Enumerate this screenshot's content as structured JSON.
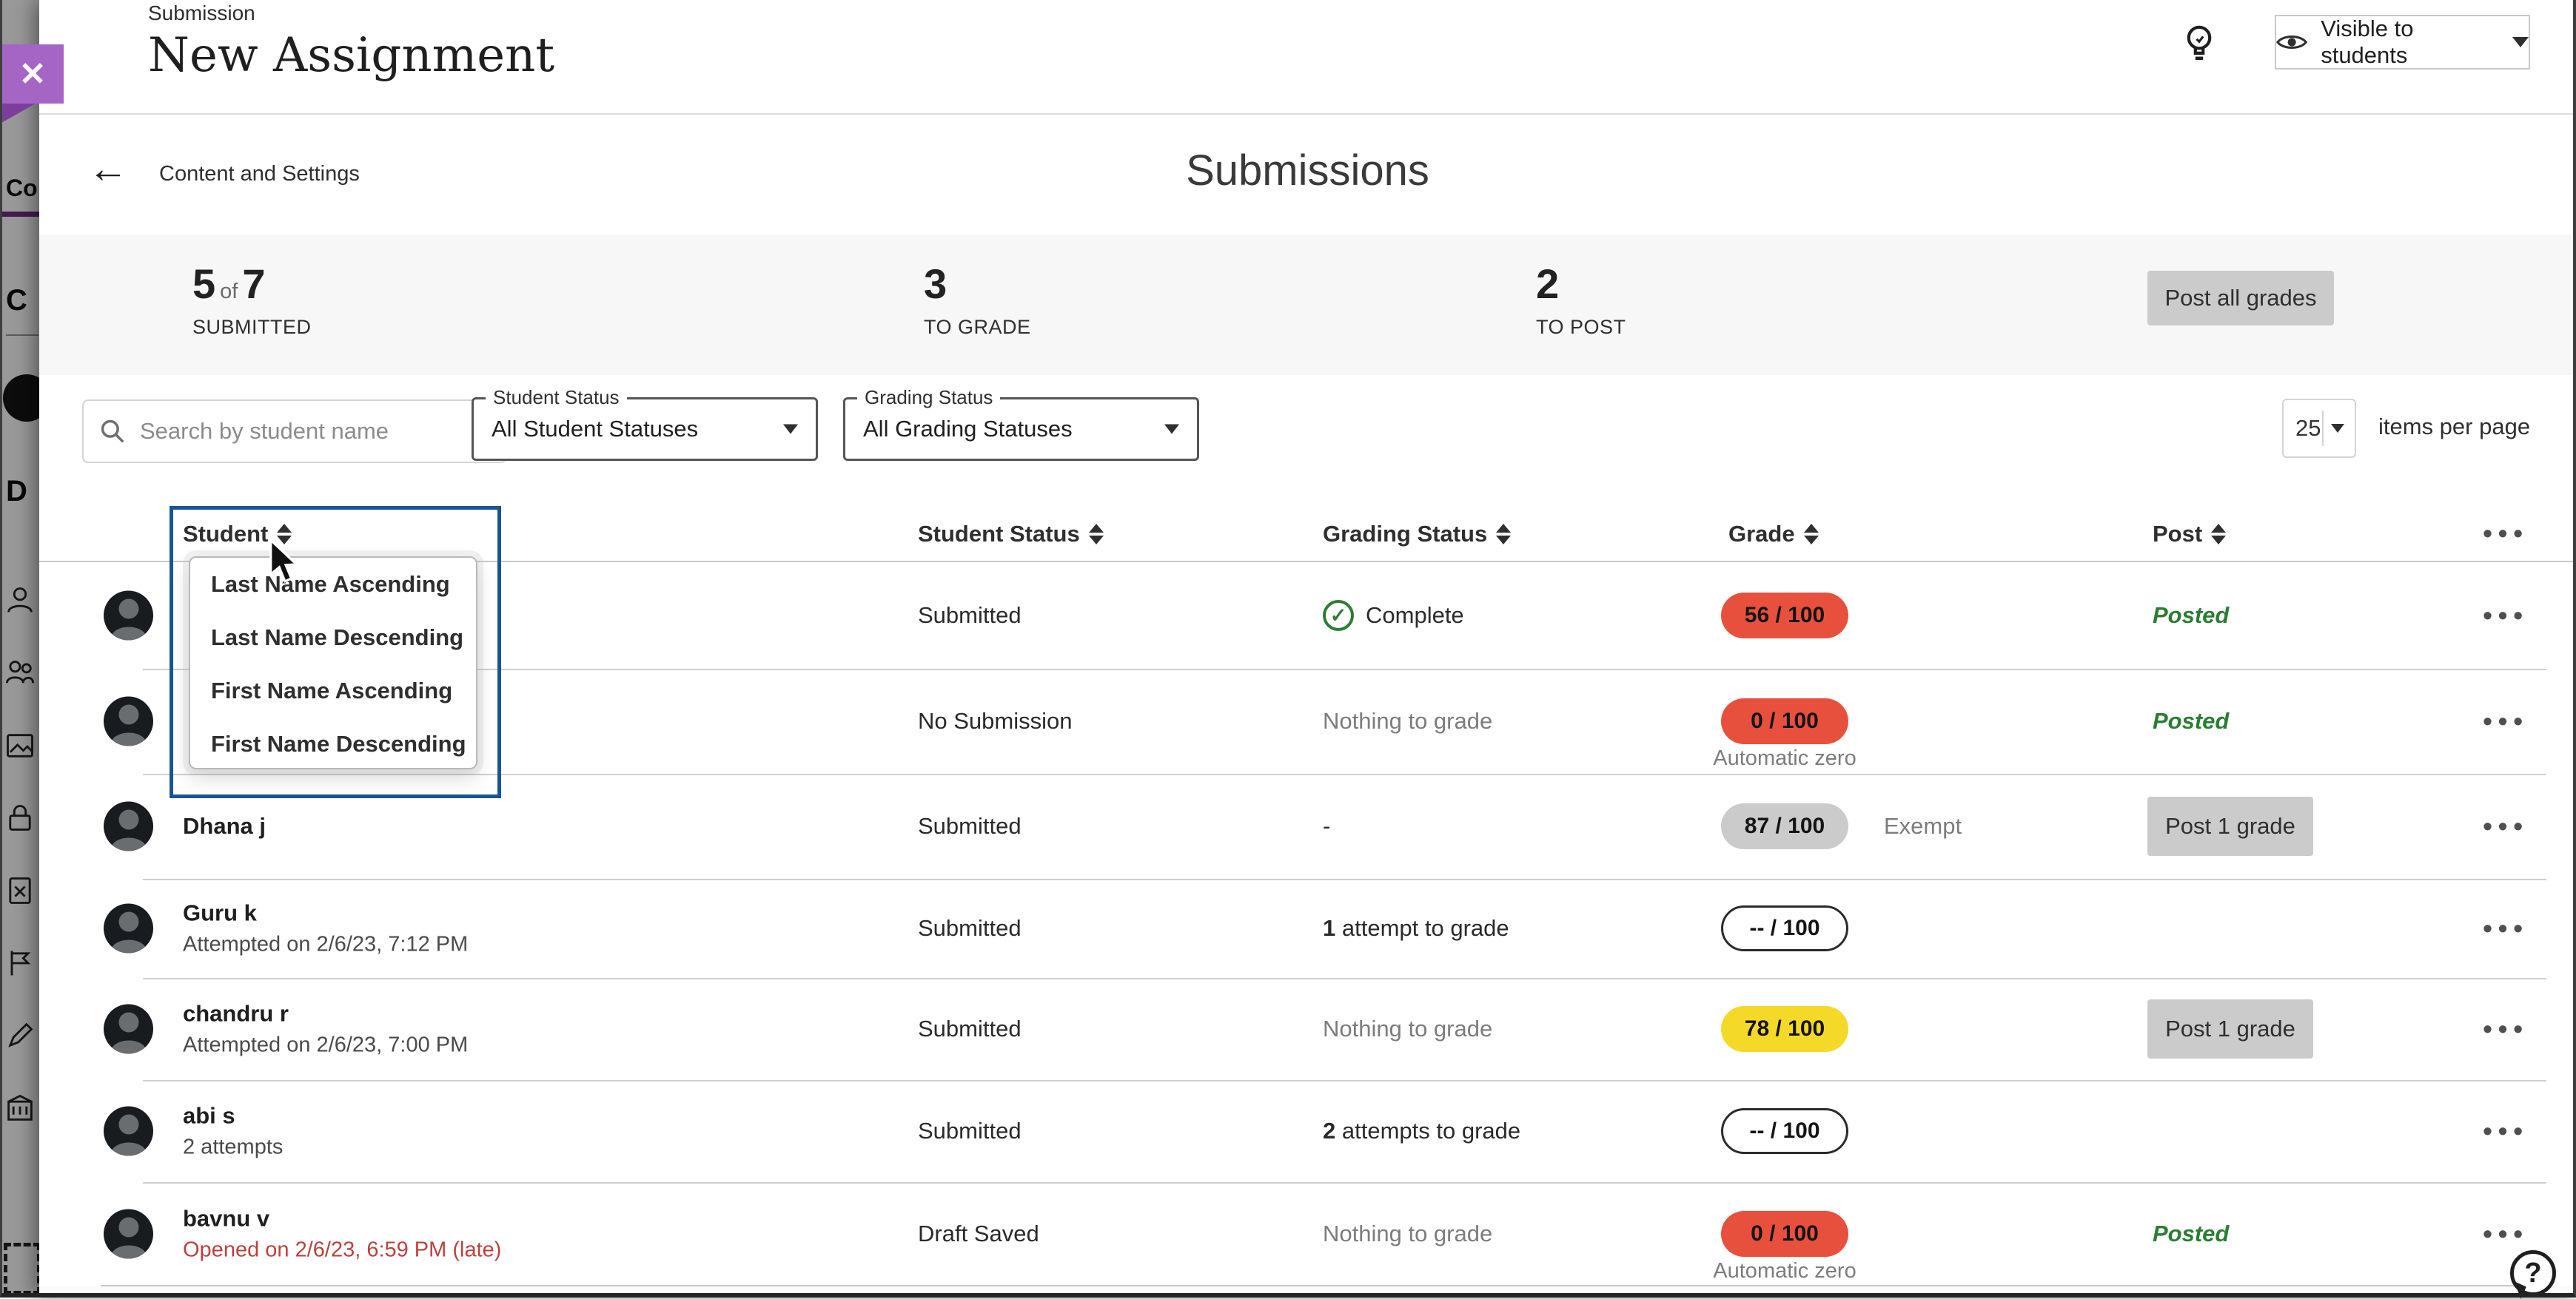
{
  "topbar": {
    "eyebrow": "Submission",
    "title": "New Assignment",
    "close_label": "✕",
    "visibility_label": "Visible to students"
  },
  "subheader": {
    "back": "Content and Settings",
    "title": "Submissions"
  },
  "stats": {
    "submitted_count": "5",
    "submitted_of": "of",
    "submitted_total": "7",
    "submitted_label": "SUBMITTED",
    "to_grade_count": "3",
    "to_grade_label": "TO GRADE",
    "to_post_count": "2",
    "to_post_label": "TO POST",
    "post_all_label": "Post all grades"
  },
  "filters": {
    "search_placeholder": "Search by student name",
    "student_status_label": "Student Status",
    "student_status_value": "All Student Statuses",
    "grading_status_label": "Grading Status",
    "grading_status_value": "All Grading Statuses",
    "page_size": "25",
    "page_size_label": "items per page"
  },
  "table": {
    "headers": [
      "Student",
      "Student Status",
      "Grading Status",
      "Grade",
      "Post"
    ],
    "overflow_label": "•••"
  },
  "sort_menu": [
    "Last Name Ascending",
    "Last Name Descending",
    "First Name Ascending",
    "First Name Descending"
  ],
  "rows": [
    {
      "name": "",
      "sub": "",
      "late": false,
      "hidden": true,
      "student_status": "Submitted",
      "grading": {
        "icon": "check",
        "count": "",
        "text": "Complete",
        "muted": false
      },
      "grade": {
        "score": "56",
        "total": "100",
        "variant": "red",
        "note_below": "",
        "note_right": ""
      },
      "post": {
        "type": "posted",
        "label": "Posted"
      }
    },
    {
      "name": "",
      "sub": "",
      "late": false,
      "hidden": true,
      "student_status": "No Submission",
      "grading": {
        "icon": "",
        "count": "",
        "text": "Nothing to grade",
        "muted": true
      },
      "grade": {
        "score": "0",
        "total": "100",
        "variant": "red",
        "note_below": "Automatic zero",
        "note_right": ""
      },
      "post": {
        "type": "posted",
        "label": "Posted"
      }
    },
    {
      "name": "Dhana j",
      "sub": "",
      "late": false,
      "hidden": false,
      "student_status": "Submitted",
      "grading": {
        "icon": "",
        "count": "",
        "text": "-",
        "muted": false
      },
      "grade": {
        "score": "87",
        "total": "100",
        "variant": "gray",
        "note_below": "",
        "note_right": "Exempt"
      },
      "post": {
        "type": "button",
        "label": "Post 1 grade"
      }
    },
    {
      "name": "Guru k",
      "sub": "Attempted on 2/6/23, 7:12 PM",
      "late": false,
      "hidden": false,
      "student_status": "Submitted",
      "grading": {
        "icon": "",
        "count": "1",
        "text": "attempt to grade",
        "muted": false
      },
      "grade": {
        "score": "--",
        "total": "100",
        "variant": "outline",
        "note_below": "",
        "note_right": ""
      },
      "post": {
        "type": "none",
        "label": ""
      }
    },
    {
      "name": "chandru r",
      "sub": "Attempted on 2/6/23, 7:00 PM",
      "late": false,
      "hidden": false,
      "student_status": "Submitted",
      "grading": {
        "icon": "",
        "count": "",
        "text": "Nothing to grade",
        "muted": true
      },
      "grade": {
        "score": "78",
        "total": "100",
        "variant": "yellow",
        "note_below": "",
        "note_right": ""
      },
      "post": {
        "type": "button",
        "label": "Post 1 grade"
      }
    },
    {
      "name": "abi s",
      "sub": "2 attempts",
      "late": false,
      "hidden": false,
      "student_status": "Submitted",
      "grading": {
        "icon": "",
        "count": "2",
        "text": "attempts to grade",
        "muted": false
      },
      "grade": {
        "score": "--",
        "total": "100",
        "variant": "outline",
        "note_below": "",
        "note_right": ""
      },
      "post": {
        "type": "none",
        "label": ""
      }
    },
    {
      "name": "bavnu v",
      "sub": "Opened on 2/6/23, 6:59 PM (late)",
      "late": true,
      "hidden": false,
      "student_status": "Draft Saved",
      "grading": {
        "icon": "",
        "count": "",
        "text": "Nothing to grade",
        "muted": true
      },
      "grade": {
        "score": "0",
        "total": "100",
        "variant": "red",
        "note_below": "Automatic zero",
        "note_right": ""
      },
      "post": {
        "type": "posted",
        "label": "Posted"
      }
    }
  ],
  "sidebar": {
    "fragments": [
      "Co",
      "C",
      "D"
    ]
  },
  "help_label": "?",
  "colors": {
    "accent-blue": "#1a5493",
    "pill-red": "#e8503e",
    "pill-yellow": "#f5d929",
    "pill-gray": "#cbcbcb",
    "green": "#2a7d32",
    "late-red": "#b9423e",
    "purple": "#a565c5"
  }
}
